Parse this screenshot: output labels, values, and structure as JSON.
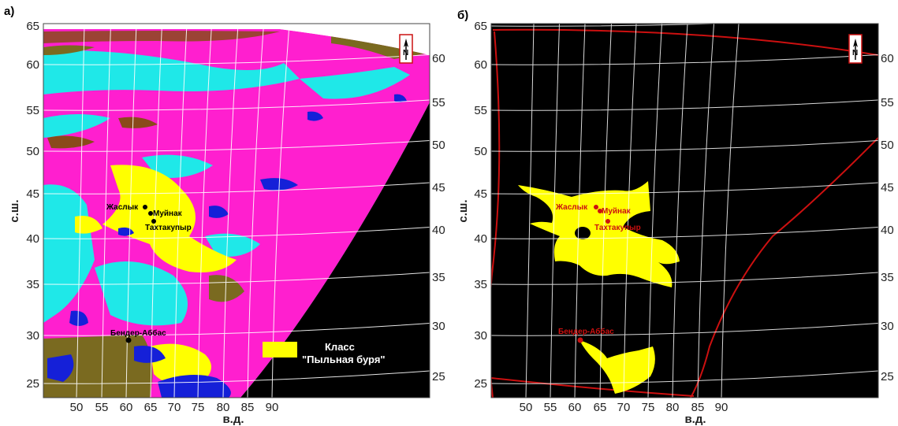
{
  "panels": [
    {
      "label": "а)",
      "xlabel": "в.д.",
      "ylabel": "с.ш.",
      "north": "N",
      "x_ticks": [
        "50",
        "55",
        "60",
        "65",
        "70",
        "75",
        "80",
        "85",
        "90"
      ],
      "y_ticks_left": [
        "65",
        "60",
        "55",
        "50",
        "45",
        "40",
        "35",
        "30",
        "25"
      ],
      "y_ticks_right": [
        "60",
        "55",
        "50",
        "45",
        "40",
        "35",
        "30",
        "25"
      ],
      "cities": [
        "Жаслык",
        "Муйнак",
        "Тахтакупыр",
        "Бендер-Аббас"
      ],
      "legend": {
        "title": "Класс",
        "subtitle": "\"Пыльная буря\"",
        "color": "#ffff00"
      }
    },
    {
      "label": "б)",
      "xlabel": "в.д.",
      "ylabel": "с.ш.",
      "north": "N",
      "x_ticks": [
        "50",
        "55",
        "60",
        "65",
        "70",
        "75",
        "80",
        "85",
        "90"
      ],
      "y_ticks_left": [
        "65",
        "60",
        "55",
        "50",
        "45",
        "40",
        "35",
        "30",
        "25"
      ],
      "y_ticks_right": [
        "60",
        "55",
        "50",
        "45",
        "40",
        "35",
        "30",
        "25"
      ],
      "cities": [
        "Жаслык",
        "Муйнак",
        "Тахтакупыр",
        "Бендер-Аббас"
      ]
    }
  ],
  "colors": {
    "magenta": "#ff1fcf",
    "cyan": "#1fe8e8",
    "yellow": "#ffff00",
    "olive": "#7a6a20",
    "blue": "#1520d8",
    "brown": "#8a4a1a",
    "black": "#000000",
    "red_outline": "#cc1010"
  }
}
